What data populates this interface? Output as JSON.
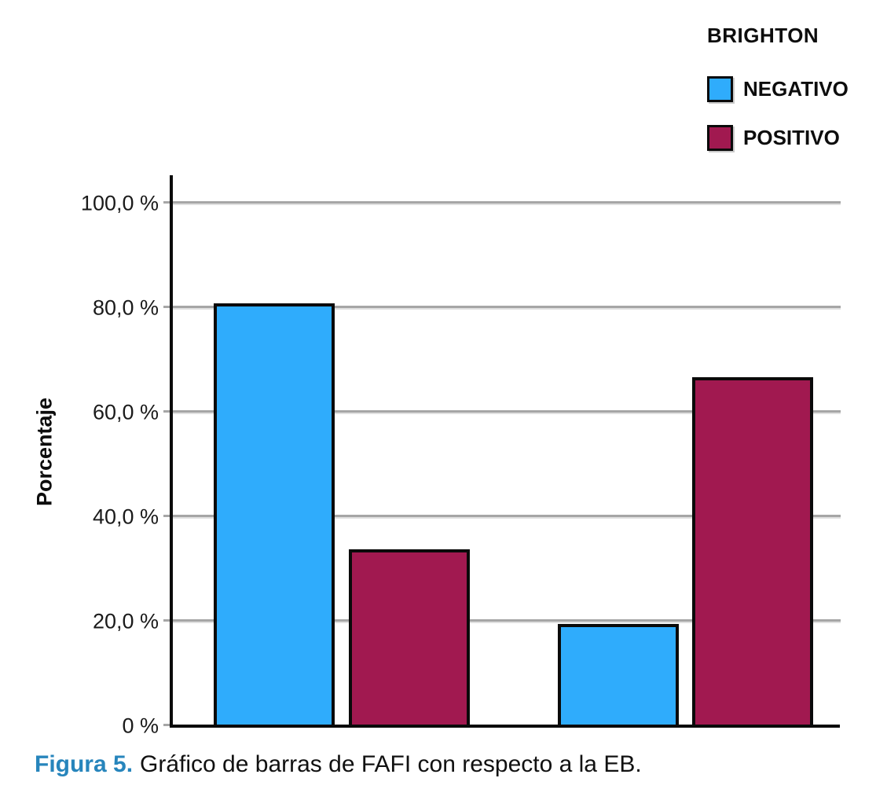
{
  "chart_data": {
    "type": "bar",
    "title": "",
    "ylabel": "Porcentaje",
    "ylim": [
      0,
      100
    ],
    "grid": "horizontal",
    "yticks": [
      {
        "value": 0,
        "label": "0 %"
      },
      {
        "value": 20,
        "label": "20,0 %"
      },
      {
        "value": 40,
        "label": "40,0 %"
      },
      {
        "value": 60,
        "label": "60,0 %"
      },
      {
        "value": 80,
        "label": "80,0 %"
      },
      {
        "value": 100,
        "label": "100,0 %"
      }
    ],
    "legend": {
      "title": "BRIGHTON",
      "position": "top-right",
      "entries": [
        {
          "label": "NEGATIVO",
          "color": "#2FACFC"
        },
        {
          "label": "POSITIVO",
          "color": "#A11950"
        }
      ]
    },
    "categories": [
      "",
      ""
    ],
    "x_axis_labels_visible": false,
    "series": [
      {
        "name": "NEGATIVO",
        "color": "#2FACFC",
        "values": [
          80.6,
          19.3
        ]
      },
      {
        "name": "POSITIVO",
        "color": "#A11950",
        "values": [
          33.5,
          66.5
        ]
      }
    ]
  },
  "caption": {
    "label": "Figura 5.",
    "text": "Gráfico de barras de FAFI con respecto a la EB.",
    "label_color": "#2785BC"
  },
  "colors": {
    "axis": "#0A0A0A",
    "gridline": "#A6A6A6",
    "bar_border": "#0A0A0A"
  }
}
